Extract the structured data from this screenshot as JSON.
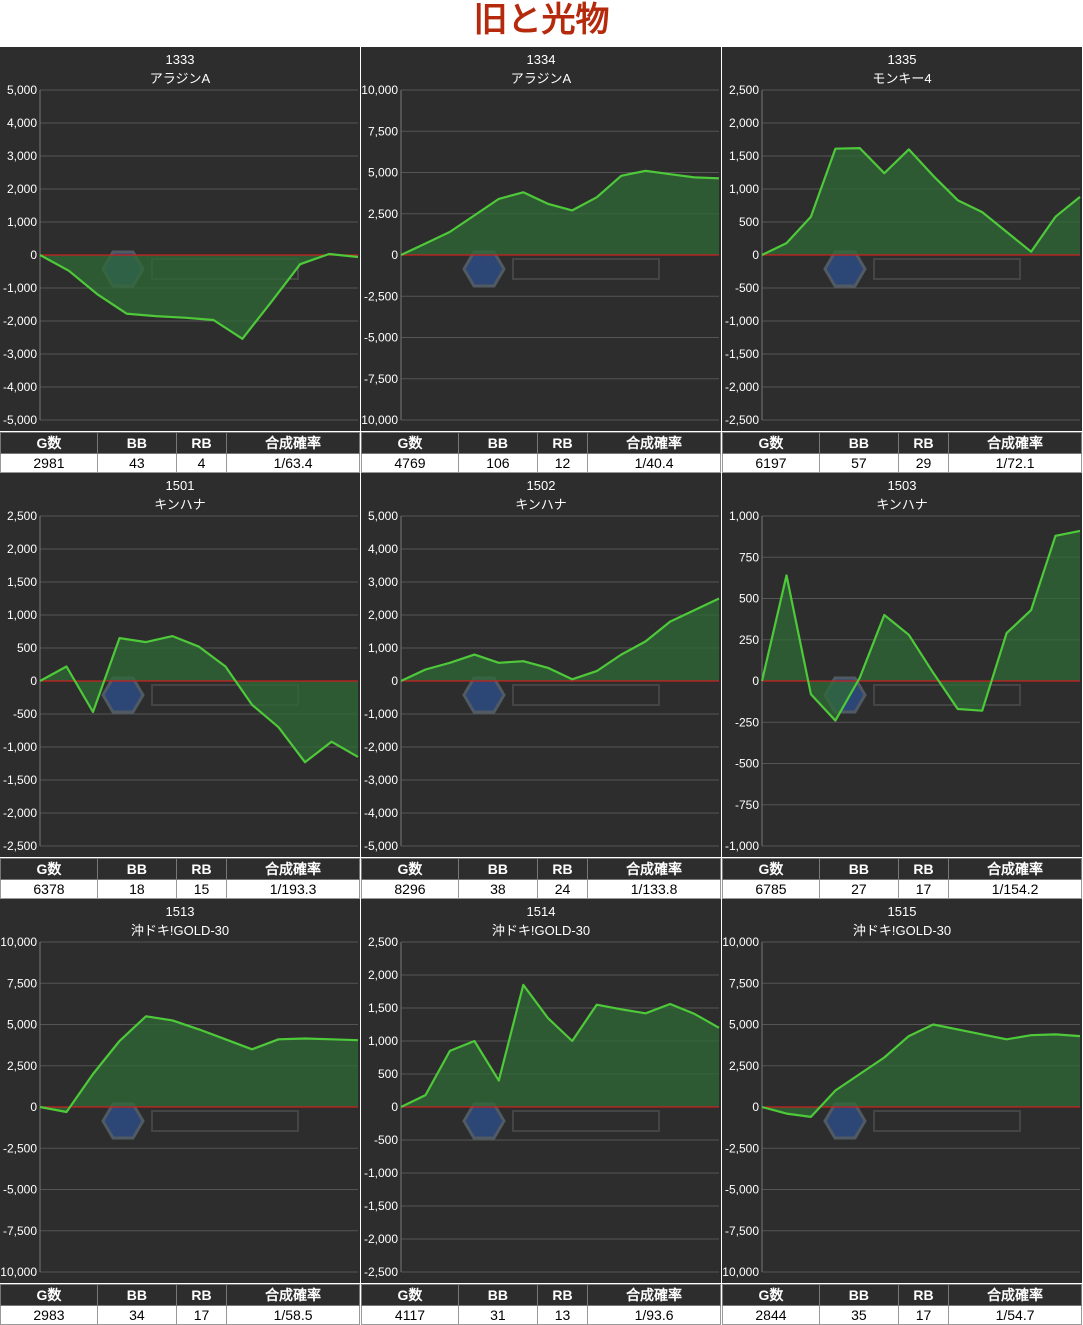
{
  "title": "旧と光物",
  "table_headers": [
    "G数",
    "BB",
    "RB",
    "合成確率"
  ],
  "colors": {
    "line": "#4ec93a",
    "fill": "#2f6a36",
    "zero": "#cc2020",
    "grid": "#555555",
    "bg": "#2d2d2d"
  },
  "chart_data": [
    {
      "type": "area",
      "machine_no": "1333",
      "model": "アラジンA",
      "ylim": [
        -5000,
        5000
      ],
      "yticks": [
        "5,000",
        "4,000",
        "3,000",
        "2,000",
        "1,000",
        "0",
        "-1,000",
        "-2,000",
        "-3,000",
        "-4,000",
        "-5,000"
      ],
      "values": [
        0,
        -480,
        -1200,
        -1780,
        -1850,
        -1900,
        -1970,
        -2540,
        -1420,
        -280,
        30,
        -60
      ],
      "stats": {
        "g": "2981",
        "bb": "43",
        "rb": "4",
        "prob": "1/63.4"
      }
    },
    {
      "type": "area",
      "machine_no": "1334",
      "model": "アラジンA",
      "ylim": [
        -10000,
        10000
      ],
      "yticks": [
        "10,000",
        "7,500",
        "5,000",
        "2,500",
        "0",
        "-2,500",
        "-5,000",
        "-7,500",
        "-10,000"
      ],
      "values": [
        0,
        700,
        1400,
        2400,
        3400,
        3800,
        3100,
        2700,
        3500,
        4800,
        5100,
        4900,
        4700,
        4650
      ],
      "stats": {
        "g": "4769",
        "bb": "106",
        "rb": "12",
        "prob": "1/40.4"
      }
    },
    {
      "type": "area",
      "machine_no": "1335",
      "model": "モンキー4",
      "ylim": [
        -2500,
        2500
      ],
      "yticks": [
        "2,500",
        "2,000",
        "1,500",
        "1,000",
        "500",
        "0",
        "-500",
        "-1,000",
        "-1,500",
        "-2,000",
        "-2,500"
      ],
      "values": [
        0,
        180,
        580,
        1610,
        1620,
        1240,
        1600,
        1200,
        830,
        650,
        350,
        50,
        580,
        880
      ],
      "stats": {
        "g": "6197",
        "bb": "57",
        "rb": "29",
        "prob": "1/72.1"
      }
    },
    {
      "type": "area",
      "machine_no": "1501",
      "model": "キンハナ",
      "ylim": [
        -2500,
        2500
      ],
      "yticks": [
        "2,500",
        "2,000",
        "1,500",
        "1,000",
        "500",
        "0",
        "-500",
        "-1,000",
        "-1,500",
        "-2,000",
        "-2,500"
      ],
      "values": [
        0,
        220,
        -470,
        650,
        590,
        680,
        520,
        220,
        -360,
        -700,
        -1230,
        -920,
        -1150
      ],
      "stats": {
        "g": "6378",
        "bb": "18",
        "rb": "15",
        "prob": "1/193.3"
      }
    },
    {
      "type": "area",
      "machine_no": "1502",
      "model": "キンハナ",
      "ylim": [
        -5000,
        5000
      ],
      "yticks": [
        "5,000",
        "4,000",
        "3,000",
        "2,000",
        "1,000",
        "0",
        "-1,000",
        "-2,000",
        "-3,000",
        "-4,000",
        "-5,000"
      ],
      "values": [
        0,
        350,
        550,
        800,
        550,
        600,
        400,
        50,
        300,
        800,
        1200,
        1800,
        2150,
        2500
      ],
      "stats": {
        "g": "8296",
        "bb": "38",
        "rb": "24",
        "prob": "1/133.8"
      }
    },
    {
      "type": "area",
      "machine_no": "1503",
      "model": "キンハナ",
      "ylim": [
        -1000,
        1000
      ],
      "yticks": [
        "1,000",
        "750",
        "500",
        "250",
        "0",
        "-250",
        "-500",
        "-750",
        "-1,000"
      ],
      "values": [
        0,
        640,
        -80,
        -240,
        20,
        400,
        280,
        50,
        -170,
        -180,
        290,
        430,
        880,
        910
      ],
      "stats": {
        "g": "6785",
        "bb": "27",
        "rb": "17",
        "prob": "1/154.2"
      }
    },
    {
      "type": "area",
      "machine_no": "1513",
      "model": "沖ドキ!GOLD-30",
      "ylim": [
        -10000,
        10000
      ],
      "yticks": [
        "10,000",
        "7,500",
        "5,000",
        "2,500",
        "0",
        "-2,500",
        "-5,000",
        "-7,500",
        "-10,000"
      ],
      "values": [
        0,
        -300,
        2000,
        4000,
        5500,
        5250,
        4700,
        4100,
        3500,
        4100,
        4150,
        4100,
        4050
      ],
      "stats": {
        "g": "2983",
        "bb": "34",
        "rb": "17",
        "prob": "1/58.5"
      }
    },
    {
      "type": "area",
      "machine_no": "1514",
      "model": "沖ドキ!GOLD-30",
      "ylim": [
        -2500,
        2500
      ],
      "yticks": [
        "2,500",
        "2,000",
        "1,500",
        "1,000",
        "500",
        "0",
        "-500",
        "-1,000",
        "-1,500",
        "-2,000",
        "-2,500"
      ],
      "values": [
        0,
        180,
        850,
        1000,
        400,
        1850,
        1350,
        1000,
        1550,
        1480,
        1420,
        1560,
        1410,
        1200
      ],
      "stats": {
        "g": "4117",
        "bb": "31",
        "rb": "13",
        "prob": "1/93.6"
      }
    },
    {
      "type": "area",
      "machine_no": "1515",
      "model": "沖ドキ!GOLD-30",
      "ylim": [
        -10000,
        10000
      ],
      "yticks": [
        "10,000",
        "7,500",
        "5,000",
        "2,500",
        "0",
        "-2,500",
        "-5,000",
        "-7,500",
        "-10,000"
      ],
      "values": [
        0,
        -400,
        -600,
        1000,
        2000,
        3000,
        4300,
        5000,
        4700,
        4400,
        4100,
        4350,
        4400,
        4300
      ],
      "stats": {
        "g": "2844",
        "bb": "35",
        "rb": "17",
        "prob": "1/54.7"
      }
    }
  ]
}
